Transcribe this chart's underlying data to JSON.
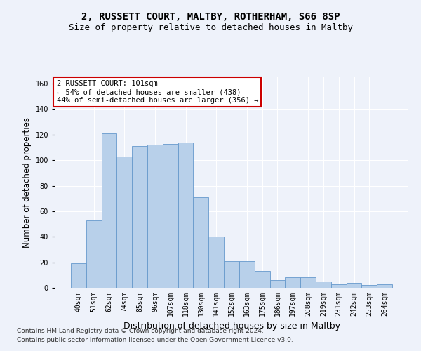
{
  "title1": "2, RUSSETT COURT, MALTBY, ROTHERHAM, S66 8SP",
  "title2": "Size of property relative to detached houses in Maltby",
  "xlabel": "Distribution of detached houses by size in Maltby",
  "ylabel": "Number of detached properties",
  "categories": [
    "40sqm",
    "51sqm",
    "62sqm",
    "74sqm",
    "85sqm",
    "96sqm",
    "107sqm",
    "118sqm",
    "130sqm",
    "141sqm",
    "152sqm",
    "163sqm",
    "175sqm",
    "186sqm",
    "197sqm",
    "208sqm",
    "219sqm",
    "231sqm",
    "242sqm",
    "253sqm",
    "264sqm"
  ],
  "values": [
    19,
    53,
    121,
    103,
    111,
    112,
    113,
    114,
    71,
    40,
    21,
    21,
    13,
    6,
    8,
    8,
    5,
    3,
    4,
    2,
    3
  ],
  "bar_color": "#b8d0ea",
  "bar_edge_color": "#6699cc",
  "annotation_text": "2 RUSSETT COURT: 101sqm\n← 54% of detached houses are smaller (438)\n44% of semi-detached houses are larger (356) →",
  "annotation_box_color": "white",
  "annotation_box_edge_color": "#cc0000",
  "ylim": [
    0,
    165
  ],
  "yticks": [
    0,
    20,
    40,
    60,
    80,
    100,
    120,
    140,
    160
  ],
  "footnote1": "Contains HM Land Registry data © Crown copyright and database right 2024.",
  "footnote2": "Contains public sector information licensed under the Open Government Licence v3.0.",
  "background_color": "#eef2fa",
  "grid_color": "#ffffff",
  "title1_fontsize": 10,
  "title2_fontsize": 9,
  "xlabel_fontsize": 9,
  "ylabel_fontsize": 8.5,
  "tick_fontsize": 7,
  "annot_fontsize": 7.5,
  "footnote_fontsize": 6.5
}
